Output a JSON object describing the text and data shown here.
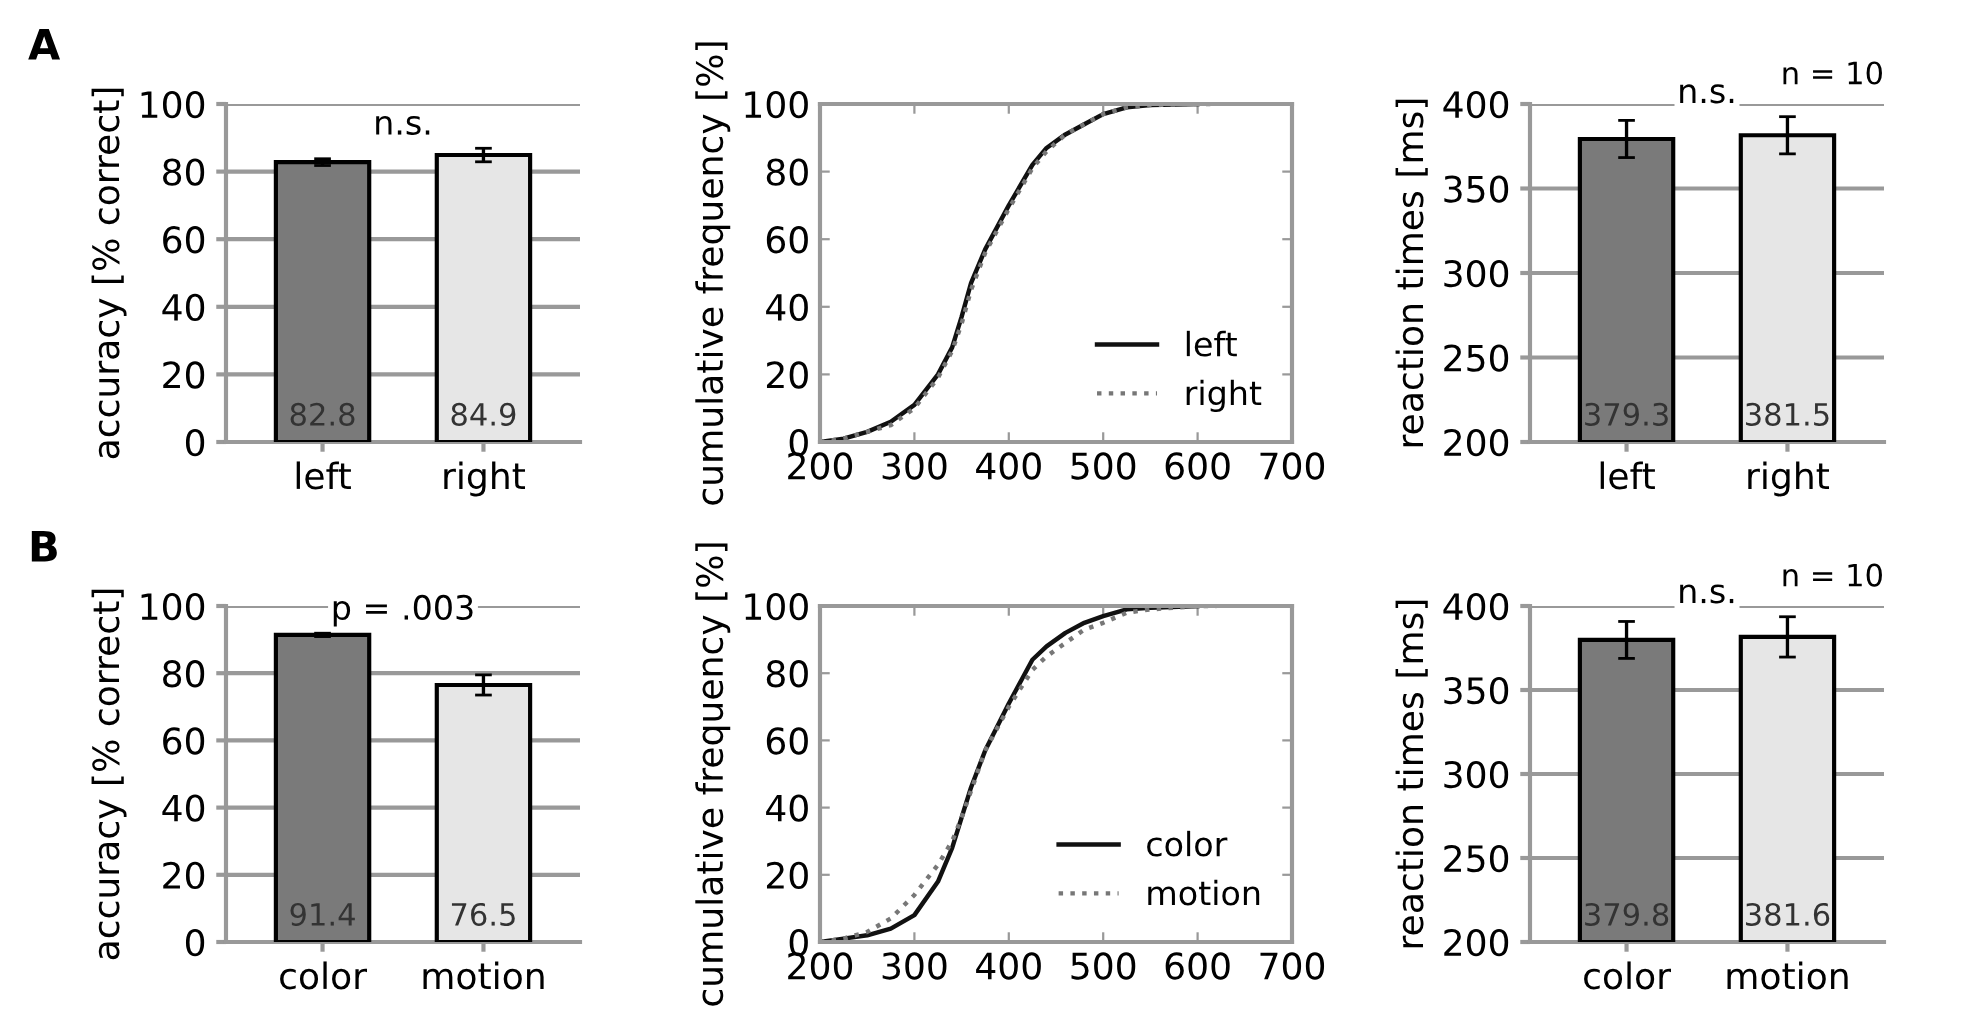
{
  "chart_data": [
    {
      "type": "bar",
      "title": "A",
      "ylabel": "accuracy [% correct]",
      "categories": [
        "left",
        "right"
      ],
      "values": [
        82.8,
        84.9
      ],
      "colors": [
        "#7a7a7a",
        "#e6e6e6"
      ],
      "errors": [
        1,
        2
      ],
      "data_labels": true,
      "ylim": [
        0,
        100
      ],
      "yticks": [
        0,
        20,
        40,
        60,
        80,
        100
      ],
      "grid": "y",
      "annotations": [
        "n.s."
      ]
    },
    {
      "type": "line",
      "ylabel": "cumulative frequency [%]",
      "xlim": [
        200,
        700
      ],
      "xticks": [
        200,
        300,
        400,
        500,
        600,
        700
      ],
      "ylim": [
        0,
        100
      ],
      "yticks": [
        0,
        20,
        40,
        60,
        80,
        100
      ],
      "legend": "bottom right",
      "series": [
        {
          "name": "left",
          "color": "#111111",
          "line_style": "solid",
          "x": [
            200,
            225,
            250,
            275,
            300,
            325,
            340,
            350,
            360,
            375,
            400,
            425,
            440,
            460,
            480,
            500,
            525,
            550,
            600
          ],
          "values": [
            0,
            1,
            3,
            6,
            11,
            20,
            28,
            37,
            47,
            57,
            70,
            82,
            87,
            91,
            94,
            97,
            99,
            99.7,
            100
          ]
        },
        {
          "name": "right",
          "color": "#777777",
          "line_style": "dotted",
          "x": [
            200,
            225,
            250,
            275,
            300,
            325,
            340,
            350,
            360,
            375,
            400,
            425,
            440,
            460,
            480,
            500,
            525,
            550,
            600,
            620
          ],
          "values": [
            0,
            1,
            3,
            5,
            10,
            19,
            27,
            35,
            45,
            56,
            69,
            81,
            86,
            91,
            94,
            97,
            99,
            99.7,
            100,
            100
          ]
        }
      ]
    },
    {
      "type": "bar",
      "ylabel": "reaction times [ms]",
      "categories": [
        "left",
        "right"
      ],
      "values": [
        379.3,
        381.5
      ],
      "colors": [
        "#7a7a7a",
        "#e6e6e6"
      ],
      "errors": [
        11,
        11
      ],
      "data_labels": true,
      "ylim": [
        200,
        400
      ],
      "yticks": [
        200,
        250,
        300,
        350,
        400
      ],
      "grid": "y",
      "annotations": [
        "n.s.",
        "n = 10"
      ]
    },
    {
      "type": "bar",
      "title": "B",
      "ylabel": "accuracy [% correct]",
      "categories": [
        "color",
        "motion"
      ],
      "values": [
        91.4,
        76.5
      ],
      "colors": [
        "#7a7a7a",
        "#e6e6e6"
      ],
      "errors": [
        0.5,
        3
      ],
      "data_labels": true,
      "ylim": [
        0,
        100
      ],
      "yticks": [
        0,
        20,
        40,
        60,
        80,
        100
      ],
      "grid": "y",
      "annotations": [
        "p = .003"
      ]
    },
    {
      "type": "line",
      "ylabel": "cumulative frequency [%]",
      "xlim": [
        200,
        700
      ],
      "xticks": [
        200,
        300,
        400,
        500,
        600,
        700
      ],
      "ylim": [
        0,
        100
      ],
      "yticks": [
        0,
        20,
        40,
        60,
        80,
        100
      ],
      "legend": "bottom right",
      "series": [
        {
          "name": "color",
          "color": "#111111",
          "line_style": "solid",
          "x": [
            200,
            225,
            250,
            275,
            300,
            325,
            340,
            350,
            360,
            375,
            400,
            425,
            440,
            460,
            480,
            500,
            525,
            550,
            600
          ],
          "values": [
            0,
            1,
            2,
            4,
            8,
            18,
            28,
            37,
            46,
            57,
            71,
            84,
            88,
            92,
            95,
            97,
            99,
            99.5,
            100
          ]
        },
        {
          "name": "motion",
          "color": "#777777",
          "line_style": "dotted",
          "x": [
            200,
            225,
            250,
            275,
            300,
            325,
            340,
            350,
            360,
            375,
            400,
            425,
            440,
            460,
            480,
            500,
            525,
            550,
            600,
            620
          ],
          "values": [
            0,
            1,
            3,
            7,
            14,
            23,
            30,
            37,
            45,
            57,
            70,
            81,
            85,
            89,
            93,
            95,
            98,
            99,
            100,
            100
          ]
        }
      ]
    },
    {
      "type": "bar",
      "ylabel": "reaction times [ms]",
      "categories": [
        "color",
        "motion"
      ],
      "values": [
        379.8,
        381.6
      ],
      "colors": [
        "#7a7a7a",
        "#e6e6e6"
      ],
      "errors": [
        11,
        12
      ],
      "data_labels": true,
      "ylim": [
        200,
        400
      ],
      "yticks": [
        200,
        250,
        300,
        350,
        400
      ],
      "grid": "y",
      "annotations": [
        "n.s.",
        "n = 10"
      ]
    }
  ]
}
